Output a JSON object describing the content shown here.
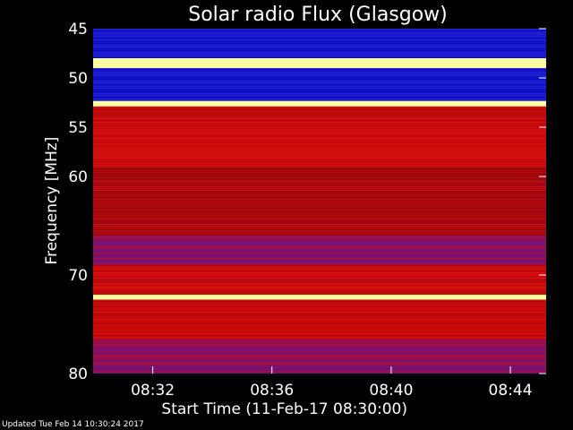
{
  "chart_data": {
    "type": "heatmap",
    "title": "Solar radio Flux (Glasgow)",
    "xlabel": "Start Time (11-Feb-17 08:30:00)",
    "ylabel": "Frequency [MHz]",
    "x_range_minutes": [
      0,
      15.2
    ],
    "x_ticks": [
      {
        "minute": 2,
        "label": "08:32"
      },
      {
        "minute": 6,
        "label": "08:36"
      },
      {
        "minute": 10,
        "label": "08:40"
      },
      {
        "minute": 14,
        "label": "08:44"
      }
    ],
    "ylim": [
      45,
      80
    ],
    "y_ticks": [
      45,
      50,
      55,
      60,
      70,
      80
    ],
    "colors": {
      "low": "#1414c8",
      "mid": "#c80a0a",
      "high": "#ffffa0",
      "background": "#000000"
    },
    "bands": [
      {
        "from": 45.0,
        "to": 48.0,
        "level": "low"
      },
      {
        "from": 48.0,
        "to": 49.0,
        "level": "high"
      },
      {
        "from": 49.0,
        "to": 52.3,
        "level": "low"
      },
      {
        "from": 52.3,
        "to": 52.9,
        "level": "high"
      },
      {
        "from": 52.9,
        "to": 59.0,
        "level": "mid"
      },
      {
        "from": 59.0,
        "to": 66.0,
        "level": "mid-dark"
      },
      {
        "from": 66.0,
        "to": 69.0,
        "level": "mid-purple"
      },
      {
        "from": 69.0,
        "to": 72.0,
        "level": "mid"
      },
      {
        "from": 72.0,
        "to": 72.5,
        "level": "high"
      },
      {
        "from": 72.5,
        "to": 76.5,
        "level": "mid"
      },
      {
        "from": 76.5,
        "to": 80.0,
        "level": "mid-purple"
      }
    ]
  },
  "footer": {
    "updated": "Updated Tue Feb 14 10:30:24 2017"
  }
}
